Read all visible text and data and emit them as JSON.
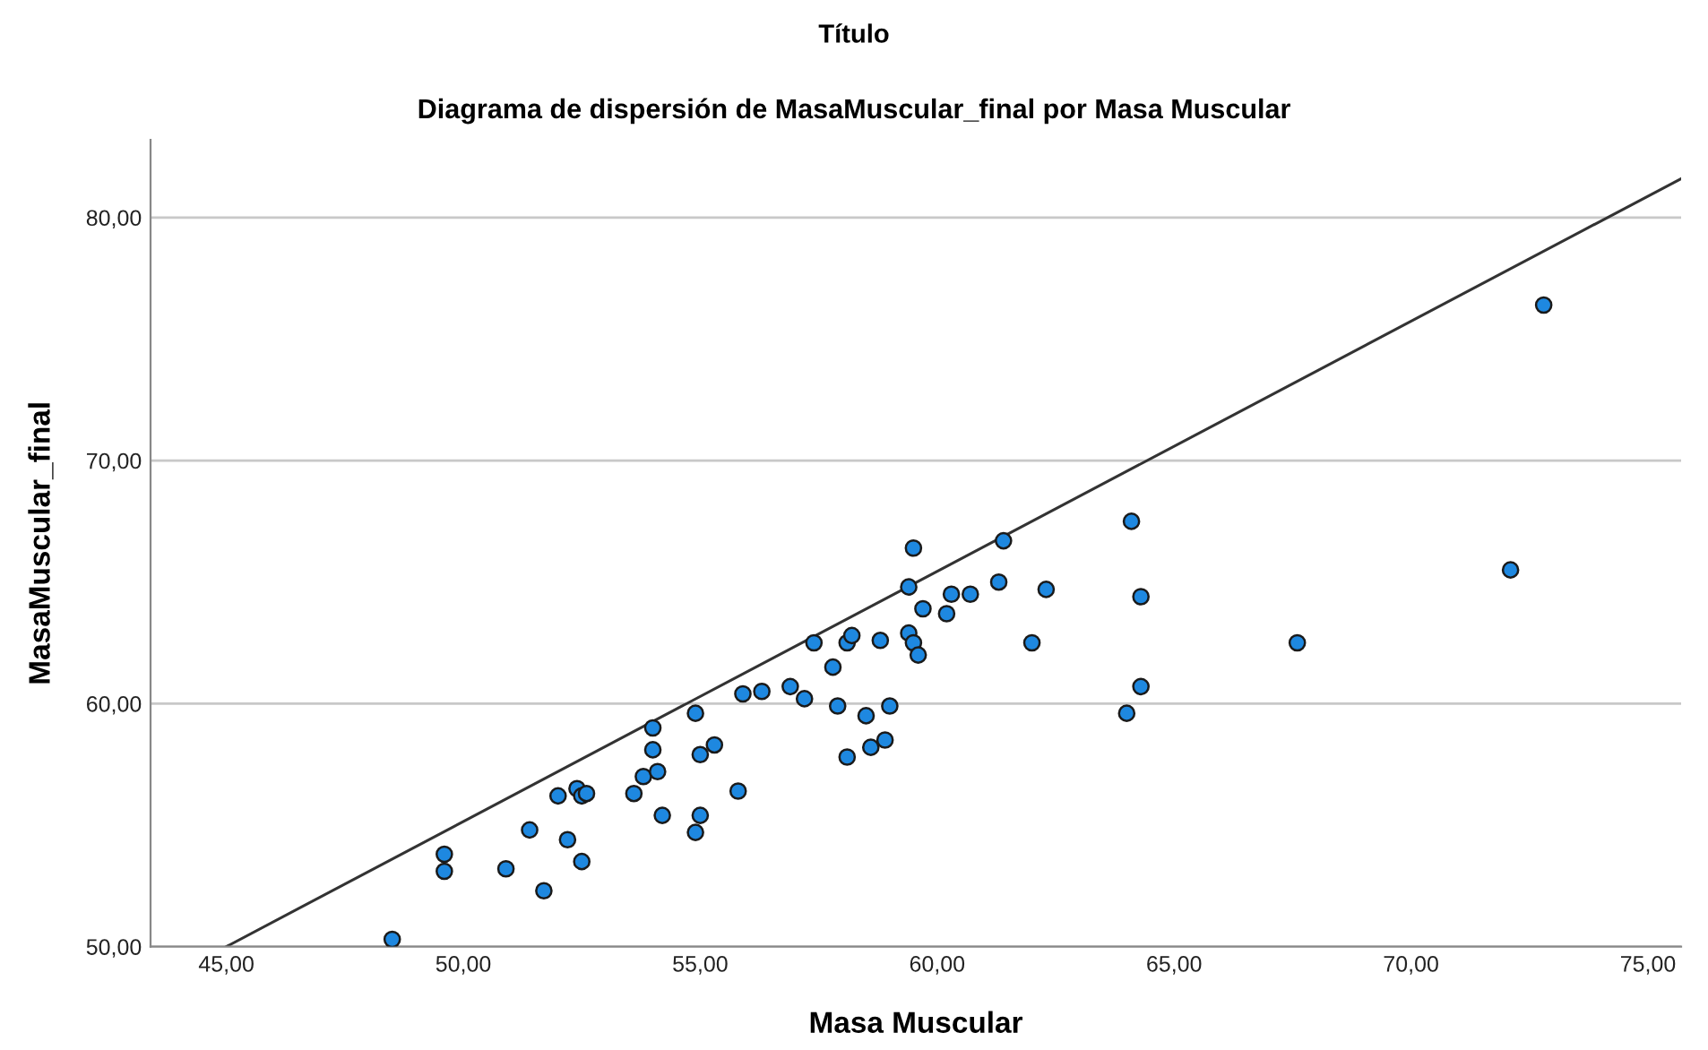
{
  "chart_data": {
    "type": "scatter",
    "title": "Título",
    "subtitle": "Diagrama de dispersión de MasaMuscular_final por Masa Muscular",
    "xlabel": "Masa Muscular",
    "ylabel": "MasaMuscular_final",
    "xlim": [
      43.4,
      75.7
    ],
    "ylim": [
      50,
      83.2
    ],
    "xticks": [
      {
        "value": 45,
        "label": "45,00"
      },
      {
        "value": 50,
        "label": "50,00"
      },
      {
        "value": 55,
        "label": "55,00"
      },
      {
        "value": 60,
        "label": "60,00"
      },
      {
        "value": 65,
        "label": "65,00"
      },
      {
        "value": 70,
        "label": "70,00"
      },
      {
        "value": 75,
        "label": "75,00"
      }
    ],
    "yticks": [
      {
        "value": 50,
        "label": "50,00"
      },
      {
        "value": 60,
        "label": "60,00"
      },
      {
        "value": 70,
        "label": "70,00"
      },
      {
        "value": 80,
        "label": "80,00"
      }
    ],
    "grid": "y",
    "marker": "circle",
    "series": [
      {
        "color": "#1e88e0",
        "x": [
          48.5,
          49.6,
          49.6,
          50.9,
          51.4,
          51.7,
          52.0,
          52.2,
          52.4,
          52.5,
          52.6,
          52.5,
          53.6,
          53.8,
          54.0,
          54.0,
          54.1,
          54.2,
          54.9,
          54.9,
          55.0,
          55.0,
          55.3,
          55.8,
          55.9,
          56.3,
          56.9,
          57.2,
          57.4,
          57.8,
          57.9,
          58.1,
          58.1,
          58.2,
          58.5,
          58.6,
          58.8,
          58.9,
          59.0,
          59.4,
          59.4,
          59.5,
          59.5,
          59.6,
          59.7,
          60.2,
          60.3,
          60.7,
          61.3,
          61.4,
          62.0,
          62.3,
          64.1,
          64.3,
          64.3,
          64.0,
          67.6,
          72.1,
          72.8
        ],
        "values": [
          50.3,
          53.8,
          53.1,
          53.2,
          54.8,
          52.3,
          56.2,
          54.4,
          56.5,
          56.2,
          56.3,
          53.5,
          56.3,
          57.0,
          59.0,
          58.1,
          57.2,
          55.4,
          54.7,
          59.6,
          55.4,
          57.9,
          58.3,
          56.4,
          60.4,
          60.5,
          60.7,
          60.2,
          62.5,
          61.5,
          59.9,
          57.8,
          62.5,
          62.8,
          59.5,
          58.2,
          62.6,
          58.5,
          59.9,
          62.9,
          64.8,
          66.4,
          62.5,
          62.0,
          63.9,
          63.7,
          64.5,
          64.5,
          65.0,
          66.7,
          62.5,
          64.7,
          67.5,
          64.4,
          60.7,
          59.6,
          62.5,
          65.5,
          76.4
        ]
      },
      {
        "type": "line",
        "color": "#333333",
        "marker": "none",
        "x": [
          45,
          75.7
        ],
        "values": [
          50,
          81.6
        ]
      }
    ]
  }
}
